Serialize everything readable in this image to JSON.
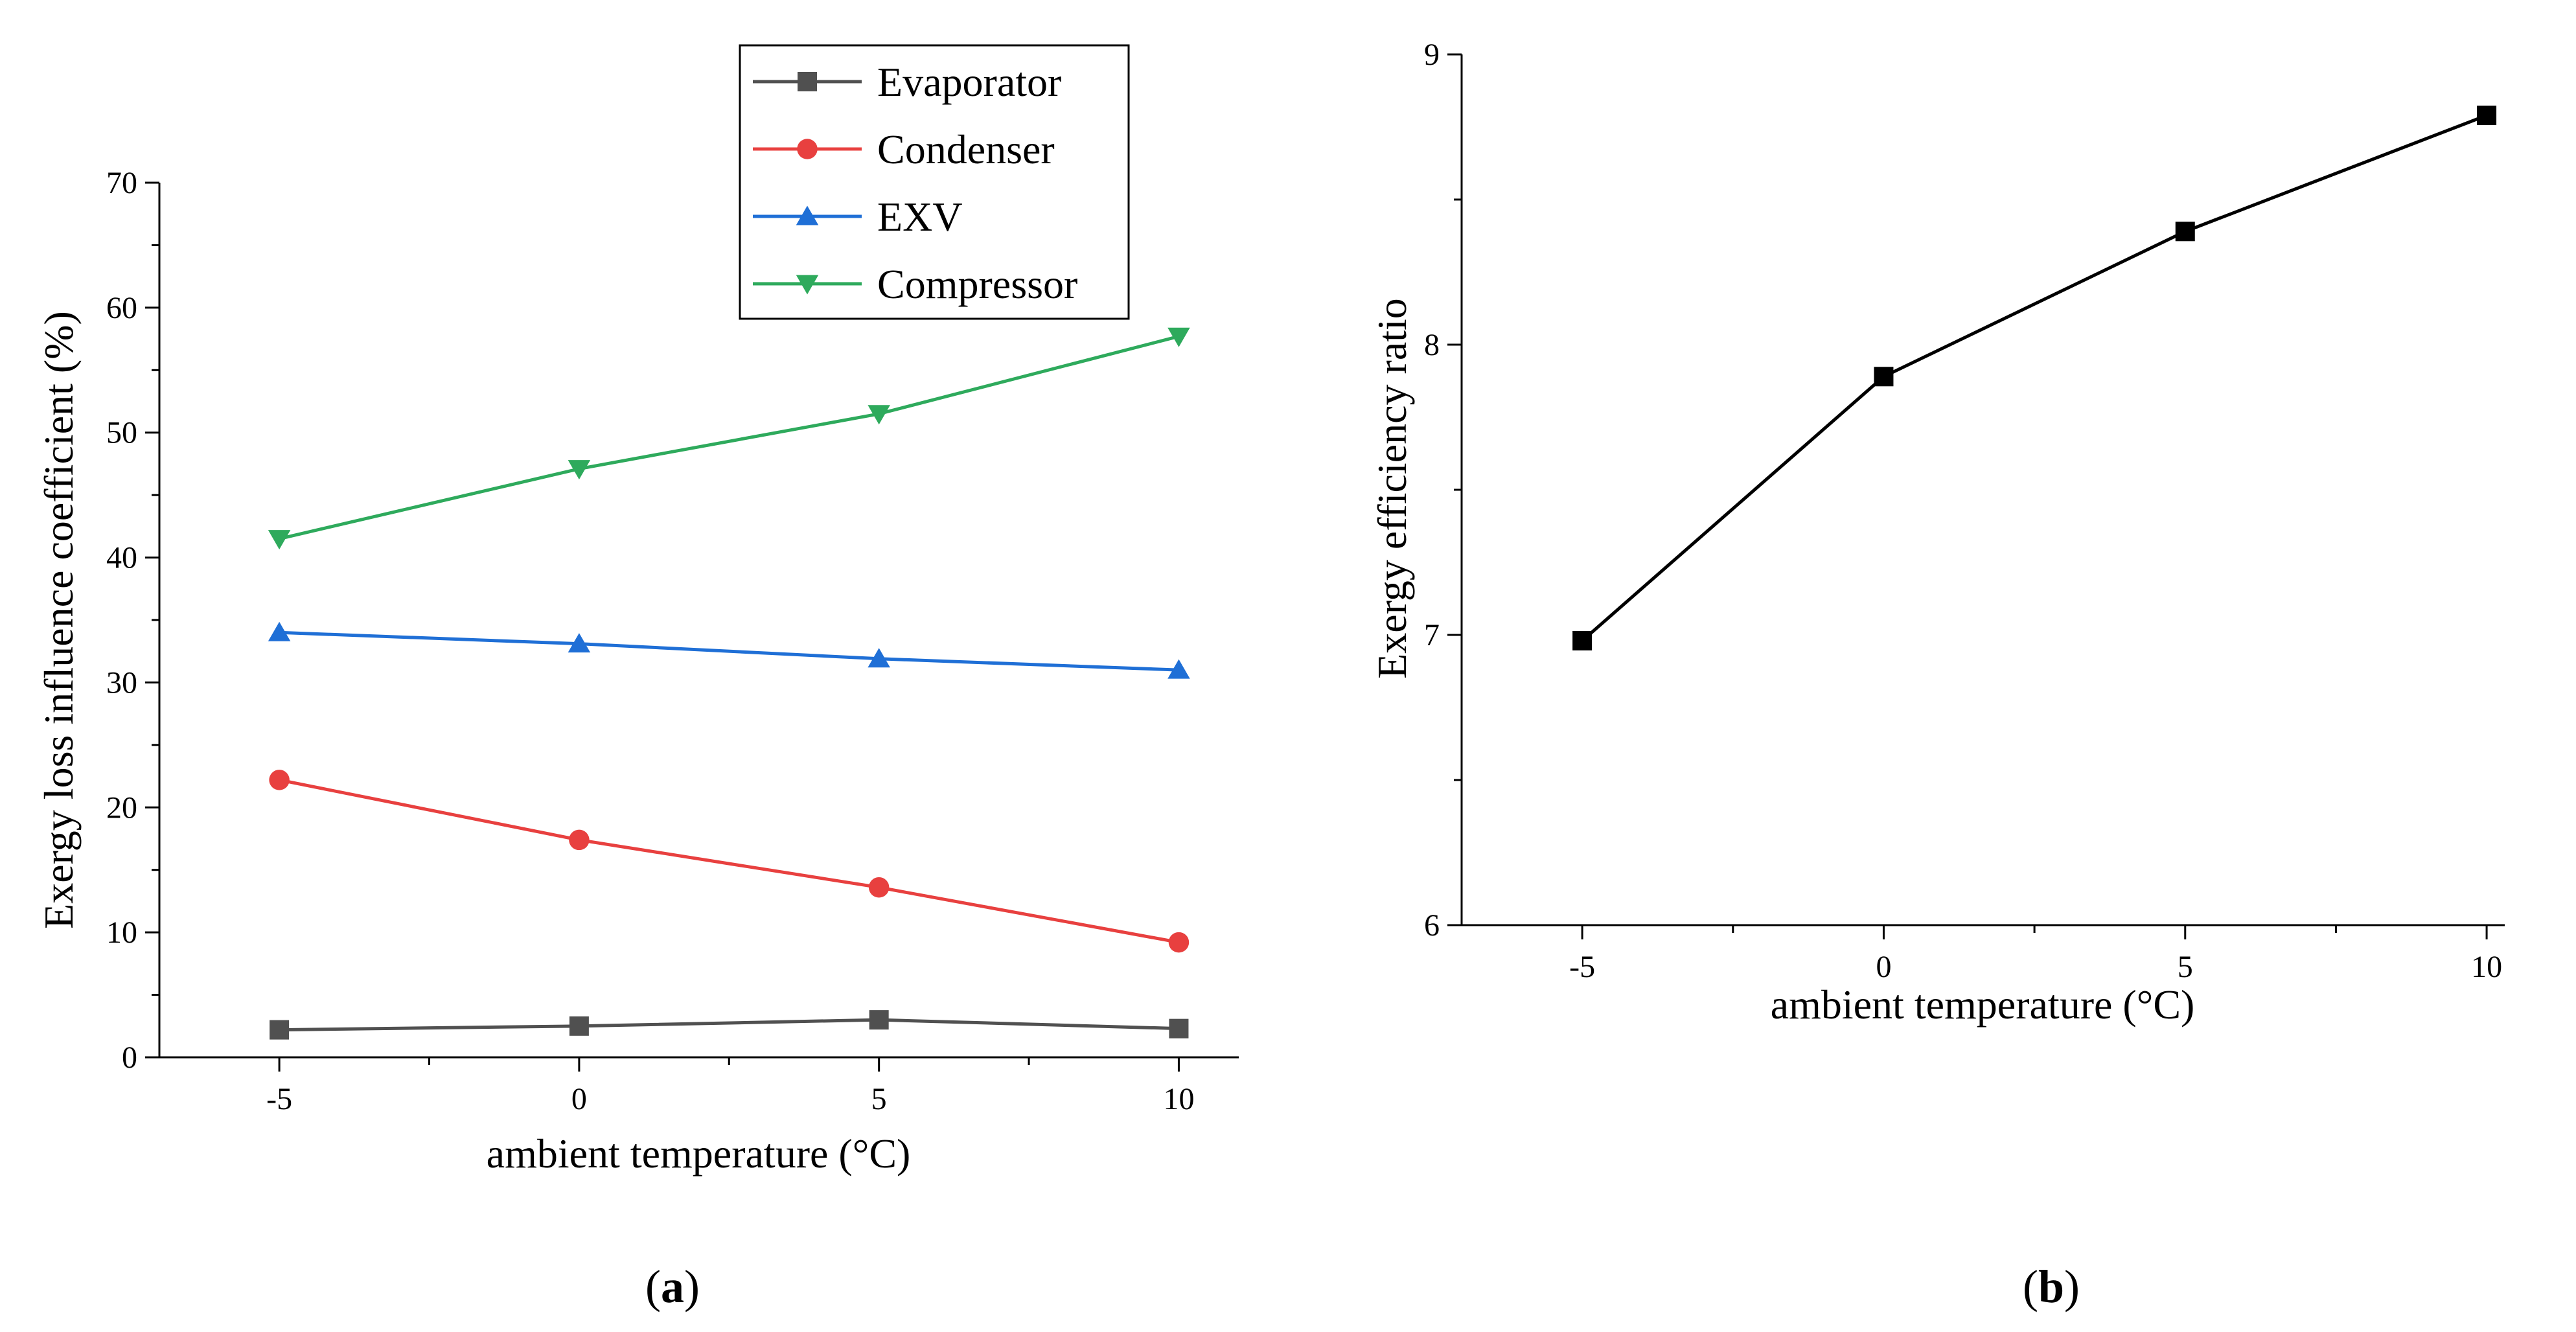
{
  "chart_data": [
    {
      "type": "line",
      "title": "",
      "xlabel": "ambient temperature (°C)",
      "ylabel": "Exergy loss influence coefficient (%)",
      "x": [
        -5,
        0,
        5,
        10
      ],
      "x_tick_labels": [
        "-5",
        "0",
        "5",
        "10"
      ],
      "xlim": [
        -7,
        11
      ],
      "ylim": [
        0,
        70
      ],
      "y_ticks": [
        0,
        10,
        20,
        30,
        40,
        50,
        60,
        70
      ],
      "y_tick_labels": [
        "0",
        "10",
        "20",
        "30",
        "40",
        "50",
        "60",
        "70"
      ],
      "legend_position": "top-right",
      "series": [
        {
          "name": "Evaporator",
          "marker": "square",
          "color": "#505050",
          "values": [
            2.2,
            2.5,
            3.0,
            2.3
          ]
        },
        {
          "name": "Condenser",
          "marker": "circle",
          "color": "#e8403f",
          "values": [
            22.2,
            17.4,
            13.6,
            9.2
          ]
        },
        {
          "name": "EXV",
          "marker": "triangle-up",
          "color": "#1f6fd6",
          "values": [
            34.0,
            33.1,
            31.9,
            31.0
          ]
        },
        {
          "name": "Compressor",
          "marker": "triangle-down",
          "color": "#2eaa5c",
          "values": [
            41.5,
            47.1,
            51.5,
            57.7
          ]
        }
      ],
      "caption_letter": "a"
    },
    {
      "type": "line",
      "title": "",
      "xlabel": "ambient temperature (°C)",
      "ylabel": "Exergy efficiency ratio",
      "x": [
        -5,
        0,
        5,
        10
      ],
      "x_tick_labels": [
        "-5",
        "0",
        "5",
        "10"
      ],
      "xlim": [
        -7,
        10.3
      ],
      "ylim": [
        6,
        9
      ],
      "y_ticks": [
        6,
        7,
        8,
        9
      ],
      "y_tick_labels": [
        "6",
        "7",
        "8",
        "9"
      ],
      "series": [
        {
          "name": "Exergy efficiency ratio",
          "marker": "square",
          "color": "#000000",
          "values": [
            6.98,
            7.89,
            8.39,
            8.79
          ]
        }
      ],
      "caption_letter": "b"
    }
  ]
}
